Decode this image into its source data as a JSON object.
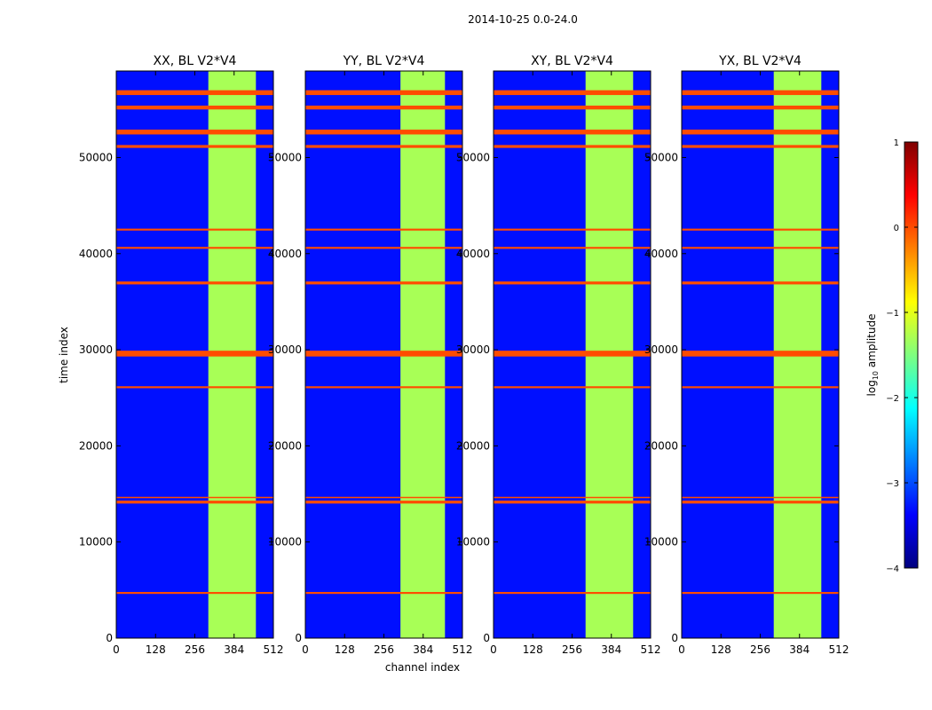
{
  "chart_data": {
    "type": "heatmap",
    "title": "2014-10-25 0.0-24.0",
    "xlabel": "channel index",
    "ylabel": "time index",
    "xlim": [
      0,
      512
    ],
    "ylim": [
      0,
      59000
    ],
    "x_ticks": [
      0,
      128,
      256,
      384,
      512
    ],
    "y_ticks": [
      0,
      10000,
      20000,
      30000,
      40000,
      50000
    ],
    "panels": [
      {
        "title": "XX, BL V2*V4"
      },
      {
        "title": "YY, BL V2*V4"
      },
      {
        "title": "XY, BL V2*V4"
      },
      {
        "title": "YX, BL V2*V4"
      }
    ],
    "colorbar": {
      "label": "log10 amplitude",
      "label_main": "log",
      "label_sub": "10",
      "label_rest": " amplitude",
      "range": [
        -4,
        1
      ],
      "ticks": [
        {
          "value": 1,
          "label": "1"
        },
        {
          "value": 0,
          "label": "0"
        },
        {
          "value": -1,
          "label": "−1"
        },
        {
          "value": -2,
          "label": "−2"
        },
        {
          "value": -3,
          "label": "−3"
        },
        {
          "value": -4,
          "label": "−4"
        }
      ],
      "colors": [
        "#00007f",
        "#0000ff",
        "#007fff",
        "#00ffff",
        "#7fff7f",
        "#ffff00",
        "#ff7f00",
        "#ff0000",
        "#7f0000"
      ]
    },
    "background_level": -3.3,
    "rfi_band_channels": [
      [
        300,
        455
      ],
      [
        310,
        455
      ],
      [
        300,
        455
      ],
      [
        300,
        455
      ]
    ],
    "flagged_time_bands": [
      [
        29300,
        29900
      ],
      [
        56500,
        57000
      ],
      [
        55000,
        55400
      ],
      [
        52400,
        52900
      ],
      [
        51000,
        51300
      ],
      [
        36800,
        37100
      ],
      [
        14000,
        14300
      ],
      [
        4600,
        4800
      ],
      [
        14600,
        14700
      ],
      [
        40500,
        40700
      ],
      [
        42400,
        42600
      ],
      [
        26000,
        26200
      ]
    ]
  }
}
